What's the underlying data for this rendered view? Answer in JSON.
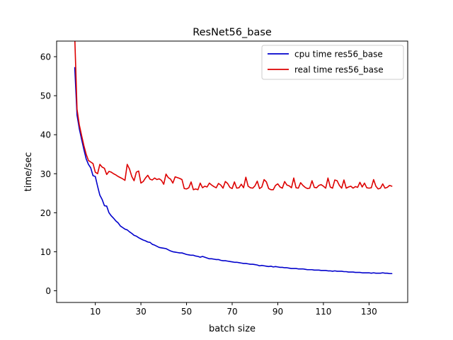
{
  "chart_data": {
    "type": "line",
    "title": "ResNet56_base",
    "xlabel": "batch size",
    "ylabel": "time/sec",
    "xlim": [
      -6.95,
      146.95
    ],
    "ylim": [
      -3,
      64
    ],
    "xticks": [
      10,
      30,
      50,
      70,
      90,
      110,
      130
    ],
    "yticks": [
      0,
      10,
      20,
      30,
      40,
      50,
      60
    ],
    "grid": false,
    "legend_position": "top-right",
    "x": [
      1,
      2,
      3,
      4,
      5,
      6,
      7,
      8,
      9,
      10,
      11,
      12,
      13,
      14,
      15,
      16,
      17,
      18,
      19,
      20,
      21,
      22,
      23,
      24,
      25,
      26,
      27,
      28,
      29,
      30,
      31,
      32,
      33,
      34,
      35,
      36,
      37,
      38,
      39,
      40,
      41,
      42,
      43,
      44,
      45,
      46,
      47,
      48,
      49,
      50,
      51,
      52,
      53,
      54,
      55,
      56,
      57,
      58,
      59,
      60,
      61,
      62,
      63,
      64,
      65,
      66,
      67,
      68,
      69,
      70,
      71,
      72,
      73,
      74,
      75,
      76,
      77,
      78,
      79,
      80,
      81,
      82,
      83,
      84,
      85,
      86,
      87,
      88,
      89,
      90,
      91,
      92,
      93,
      94,
      95,
      96,
      97,
      98,
      99,
      100,
      101,
      102,
      103,
      104,
      105,
      106,
      107,
      108,
      109,
      110,
      111,
      112,
      113,
      114,
      115,
      116,
      117,
      118,
      119,
      120,
      121,
      122,
      123,
      124,
      125,
      126,
      127,
      128,
      129,
      130,
      131,
      132,
      133,
      134,
      135,
      136,
      137,
      138,
      139,
      140
    ],
    "series": [
      {
        "name": "cpu time res56_base",
        "color": "#0000cc",
        "values": [
          57.2,
          45.0,
          41.5,
          38.8,
          36.2,
          33.8,
          32.4,
          31.5,
          29.5,
          29.3,
          26.8,
          24.5,
          23.4,
          21.8,
          21.7,
          20.0,
          19.2,
          18.6,
          17.9,
          17.4,
          16.6,
          16.2,
          15.8,
          15.6,
          15.1,
          14.7,
          14.2,
          14.0,
          13.6,
          13.3,
          13.0,
          12.8,
          12.5,
          12.4,
          11.9,
          11.7,
          11.4,
          11.1,
          11.0,
          10.9,
          10.8,
          10.5,
          10.2,
          10.0,
          9.9,
          9.8,
          9.7,
          9.7,
          9.5,
          9.3,
          9.2,
          9.1,
          9.1,
          8.9,
          8.8,
          8.6,
          8.8,
          8.6,
          8.4,
          8.2,
          8.2,
          8.1,
          8.0,
          8.0,
          7.8,
          7.7,
          7.7,
          7.6,
          7.5,
          7.4,
          7.3,
          7.3,
          7.2,
          7.1,
          7.0,
          7.0,
          6.9,
          6.8,
          6.8,
          6.7,
          6.6,
          6.4,
          6.5,
          6.4,
          6.3,
          6.2,
          6.3,
          6.1,
          6.2,
          6.1,
          6.0,
          6.0,
          5.9,
          5.9,
          5.8,
          5.7,
          5.7,
          5.7,
          5.6,
          5.6,
          5.6,
          5.5,
          5.4,
          5.4,
          5.4,
          5.3,
          5.3,
          5.3,
          5.2,
          5.2,
          5.2,
          5.1,
          5.1,
          5.0,
          5.1,
          5.0,
          5.0,
          5.0,
          4.9,
          4.9,
          4.8,
          4.8,
          4.8,
          4.7,
          4.7,
          4.7,
          4.6,
          4.6,
          4.6,
          4.6,
          4.5,
          4.6,
          4.5,
          4.5,
          4.5,
          4.6,
          4.5,
          4.5,
          4.4,
          4.4
        ]
      },
      {
        "name": "real time res56_base",
        "color": "#dd0000",
        "values": [
          65.0,
          46.5,
          42.5,
          39.8,
          37.2,
          35.0,
          33.4,
          33.0,
          32.6,
          30.4,
          30.0,
          32.4,
          31.7,
          31.4,
          29.8,
          30.6,
          30.4,
          30.0,
          29.7,
          29.3,
          29.0,
          28.7,
          28.3,
          32.4,
          31.2,
          29.3,
          28.2,
          30.4,
          30.7,
          27.6,
          28.0,
          28.9,
          29.6,
          28.6,
          28.4,
          28.9,
          28.5,
          28.7,
          28.3,
          27.3,
          29.9,
          29.0,
          28.6,
          27.6,
          29.2,
          29.0,
          28.8,
          28.5,
          26.2,
          26.1,
          26.4,
          27.9,
          25.9,
          26.1,
          25.9,
          27.6,
          26.4,
          26.8,
          26.6,
          27.6,
          27.1,
          26.7,
          26.4,
          27.5,
          27.1,
          26.3,
          28.0,
          27.5,
          26.5,
          26.2,
          27.9,
          26.3,
          26.4,
          27.3,
          26.4,
          29.1,
          26.8,
          26.4,
          26.3,
          26.9,
          28.1,
          26.2,
          26.6,
          28.5,
          27.9,
          26.2,
          25.9,
          25.9,
          27.0,
          27.4,
          26.6,
          26.3,
          28.0,
          27.1,
          26.9,
          26.4,
          28.9,
          26.4,
          26.3,
          27.7,
          27.0,
          26.5,
          26.2,
          26.3,
          28.2,
          26.5,
          26.4,
          27.0,
          27.2,
          26.8,
          26.3,
          28.9,
          26.6,
          26.3,
          28.4,
          28.2,
          27.0,
          26.3,
          28.4,
          26.3,
          26.6,
          26.8,
          26.3,
          26.7,
          26.5,
          27.8,
          26.6,
          27.6,
          26.4,
          26.3,
          26.4,
          28.5,
          26.8,
          26.1,
          26.3,
          27.4,
          26.3,
          26.5,
          27.0,
          26.8
        ]
      }
    ]
  }
}
